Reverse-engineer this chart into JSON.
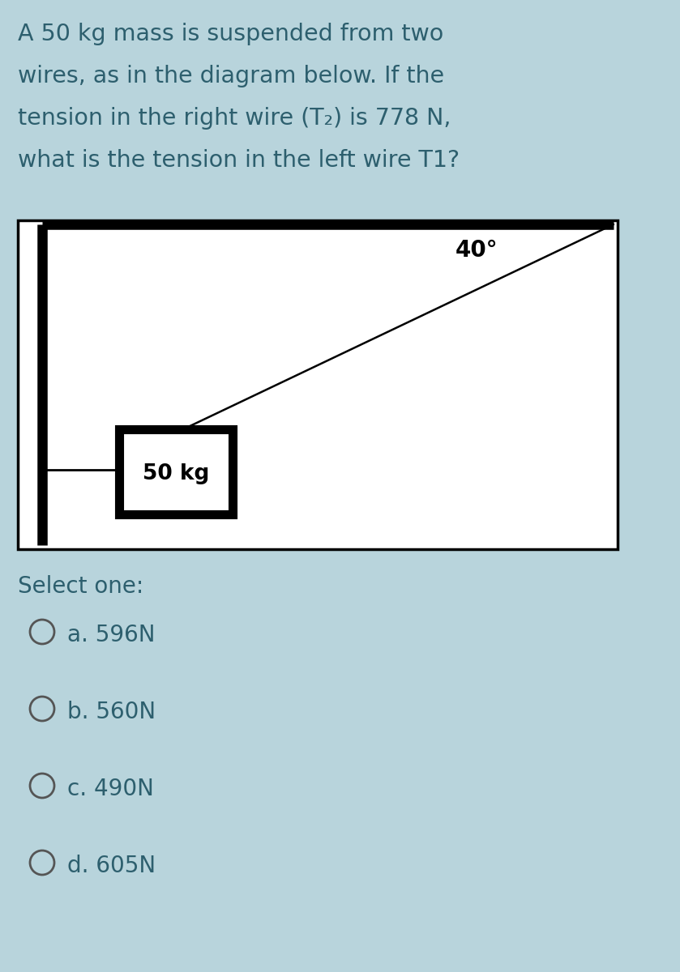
{
  "bg_color": "#b8d4dc",
  "question_text_lines": [
    "A 50 kg mass is suspended from two",
    "wires, as in the diagram below. If the",
    "tension in the right wire (T₂) is 778 N,",
    "what is the tension in the left wire T1?"
  ],
  "select_one_label": "Select one:",
  "options": [
    {
      "letter": "a",
      "text": "596N"
    },
    {
      "letter": "b",
      "text": "560N"
    },
    {
      "letter": "c",
      "text": "490N"
    },
    {
      "letter": "d",
      "text": "605N"
    }
  ],
  "diagram": {
    "white_box_bg": "#ffffff",
    "border_color": "#000000",
    "angle_label": "40°",
    "mass_label": "50 kg",
    "line_color": "#000000"
  },
  "text_color": "#2d5f6e",
  "option_text_color": "#2d5f6e",
  "radio_color": "#777777"
}
